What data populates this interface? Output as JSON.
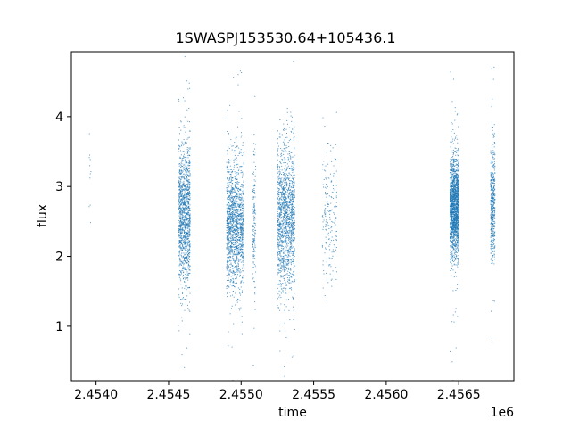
{
  "chart_data": {
    "type": "scatter",
    "title": "1SWASPJ153530.64+105436.1",
    "xlabel": "time",
    "ylabel": "flux",
    "x_offset_label": "1e6",
    "x_scale": 1000000,
    "xlim": [
      2453830,
      2456880
    ],
    "ylim": [
      0.22,
      4.93
    ],
    "x_ticks": [
      2.454,
      2.4545,
      2.455,
      2.4555,
      2.456,
      2.4565
    ],
    "x_tick_labels": [
      "2.4540",
      "2.4545",
      "2.4550",
      "2.4555",
      "2.4560",
      "2.4565"
    ],
    "y_ticks": [
      1,
      2,
      3,
      4
    ],
    "y_tick_labels": [
      "1",
      "2",
      "3",
      "4"
    ],
    "grid": false,
    "marker_color": "#1f77b4",
    "clusters": [
      {
        "x_start": 2453950,
        "x_end": 2453965,
        "y_center": 3.2,
        "y_spread": 0.45,
        "count": 12
      },
      {
        "x_start": 2454570,
        "x_end": 2454650,
        "y_center": 2.6,
        "y_spread": 0.5,
        "count": 1300
      },
      {
        "x_start": 2454900,
        "x_end": 2455020,
        "y_center": 2.45,
        "y_spread": 0.45,
        "count": 1500
      },
      {
        "x_start": 2455080,
        "x_end": 2455100,
        "y_center": 2.5,
        "y_spread": 0.55,
        "count": 150
      },
      {
        "x_start": 2455250,
        "x_end": 2455370,
        "y_center": 2.55,
        "y_spread": 0.5,
        "count": 1500
      },
      {
        "x_start": 2455560,
        "x_end": 2455660,
        "y_center": 2.6,
        "y_spread": 0.55,
        "count": 200
      },
      {
        "x_start": 2456440,
        "x_end": 2456500,
        "y_center": 2.7,
        "y_spread": 0.35,
        "count": 1800
      },
      {
        "x_start": 2456720,
        "x_end": 2456750,
        "y_center": 2.75,
        "y_spread": 0.4,
        "count": 500
      }
    ]
  }
}
